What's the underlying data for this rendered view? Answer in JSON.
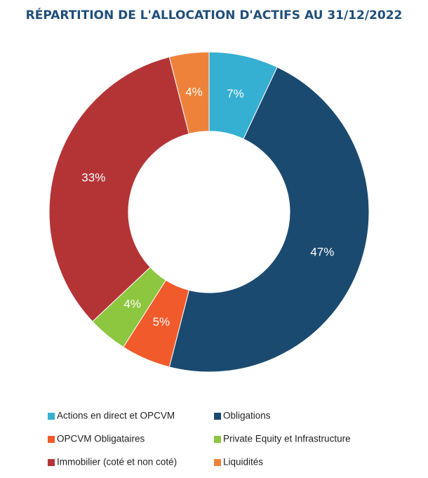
{
  "chart_data": {
    "type": "donut",
    "title": "RÉPARTITION DE L'ALLOCATION D'ACTIFS AU 31/12/2022",
    "categories": [
      "Actions en direct et OPCVM",
      "Obligations",
      "OPCVM Obligataires",
      "Private Equity et Infrastructure",
      "Immobilier (coté et non coté)",
      "Liquidités"
    ],
    "values": [
      7,
      47,
      5,
      4,
      33,
      4
    ],
    "value_labels": [
      "7%",
      "47%",
      "5%",
      "4%",
      "33%",
      "4%"
    ],
    "colors": [
      "#35afd2",
      "#1b4a70",
      "#f15a2a",
      "#8dc63f",
      "#b43436",
      "#ef823a"
    ]
  }
}
